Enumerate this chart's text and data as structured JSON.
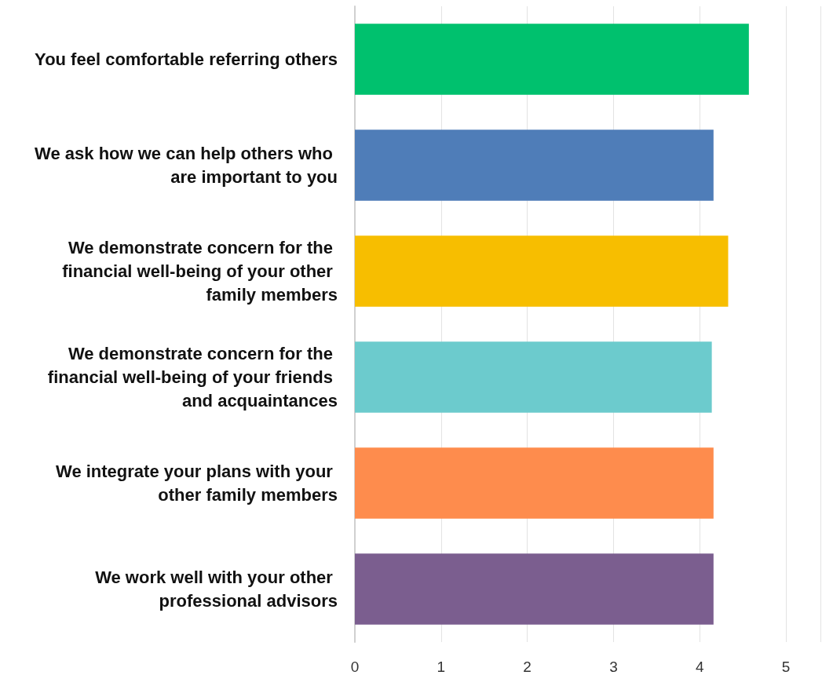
{
  "chart_data": {
    "type": "bar",
    "orientation": "horizontal",
    "categories": [
      "You feel comfortable referring others",
      "We ask how we can help others who are important to you",
      "We demonstrate concern for the financial well-being of your other family members",
      "We demonstrate concern for the financial well-being of your friends and acquaintances",
      "We integrate your plans with your other family members",
      "We work well with your other professional advisors"
    ],
    "values": [
      4.57,
      4.16,
      4.33,
      4.14,
      4.16,
      4.16
    ],
    "colors": [
      "#00c16e",
      "#4f7db8",
      "#f7be00",
      "#6ccbcd",
      "#fe8c4d",
      "#7b5e8f"
    ],
    "xlim": [
      0,
      5.4
    ],
    "xticks": [
      0,
      1,
      2,
      3,
      4,
      5
    ],
    "grid": "x"
  }
}
